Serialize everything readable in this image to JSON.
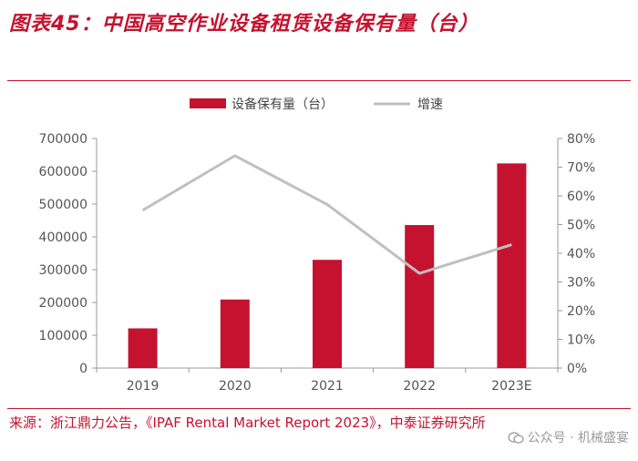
{
  "header": {
    "title": "图表45：中国高空作业设备租赁设备保有量（台）"
  },
  "footer": {
    "source": "来源：浙江鼎力公告，《IPAF Rental Market Report 2023》，中泰证券研究所",
    "watermark": "公众号 · 机械盛宴"
  },
  "colors": {
    "bar": "#c4122f",
    "line": "#bfbfbf",
    "accent": "#c4122f"
  },
  "chart_data": {
    "type": "bar",
    "title": "中国高空作业设备租赁设备保有量（台）",
    "categories": [
      "2019",
      "2020",
      "2021",
      "2022",
      "2023E"
    ],
    "series": [
      {
        "name": "设备保有量（台）",
        "type": "bar",
        "axis": "left",
        "values": [
          121000,
          209000,
          330000,
          436000,
          624000
        ]
      },
      {
        "name": "增速",
        "type": "line",
        "axis": "right",
        "values": [
          0.55,
          0.74,
          0.57,
          0.33,
          0.43
        ]
      }
    ],
    "y_left": {
      "min": 0,
      "max": 700000,
      "step": 100000,
      "ticks": [
        "0",
        "100000",
        "200000",
        "300000",
        "400000",
        "500000",
        "600000",
        "700000"
      ]
    },
    "y_right": {
      "min": 0,
      "max": 0.8,
      "step": 0.1,
      "ticks": [
        "0%",
        "10%",
        "20%",
        "30%",
        "40%",
        "50%",
        "60%",
        "70%",
        "80%"
      ]
    },
    "legend_position": "top-center"
  }
}
